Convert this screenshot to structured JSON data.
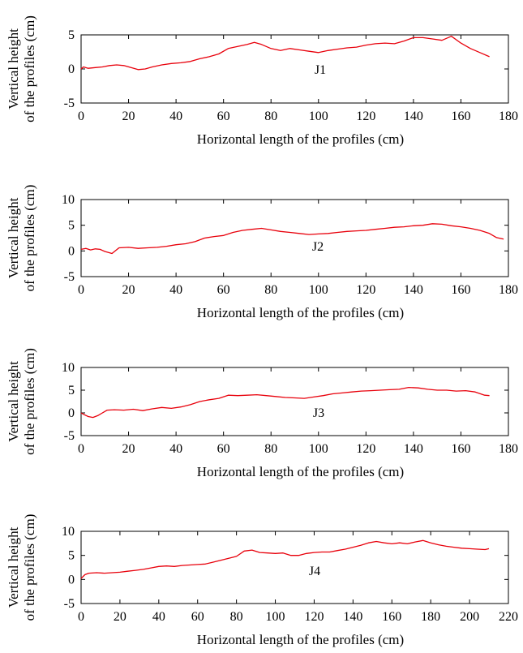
{
  "chart_data": [
    {
      "type": "line",
      "xlabel": "Horizontal length of the profiles (cm)",
      "ylabel": [
        "Vertical height",
        "of the profiles (cm)"
      ],
      "xlim": [
        0,
        180
      ],
      "ylim": [
        -5,
        5
      ],
      "xticks": [
        0,
        20,
        40,
        60,
        80,
        100,
        120,
        140,
        160,
        180
      ],
      "yticks": [
        -5,
        0,
        5
      ],
      "series_color": "#e8000b",
      "series": [
        {
          "name": "J1",
          "x": [
            0,
            1,
            3,
            6,
            9,
            12,
            15,
            18,
            21,
            24,
            27,
            30,
            34,
            38,
            42,
            46,
            50,
            54,
            58,
            62,
            66,
            70,
            73,
            76,
            80,
            84,
            88,
            92,
            96,
            100,
            104,
            108,
            112,
            116,
            120,
            124,
            128,
            132,
            136,
            140,
            144,
            148,
            152,
            156,
            160,
            164,
            168,
            172
          ],
          "values": [
            0,
            0.3,
            0.1,
            0.2,
            0.3,
            0.5,
            0.6,
            0.5,
            0.2,
            -0.1,
            0.0,
            0.3,
            0.6,
            0.8,
            0.9,
            1.1,
            1.5,
            1.8,
            2.2,
            3.0,
            3.3,
            3.6,
            3.9,
            3.6,
            3.0,
            2.7,
            3.0,
            2.8,
            2.6,
            2.4,
            2.7,
            2.9,
            3.1,
            3.2,
            3.5,
            3.7,
            3.8,
            3.7,
            4.1,
            4.6,
            4.6,
            4.4,
            4.2,
            4.8,
            3.8,
            3.0,
            2.4,
            1.8
          ]
        }
      ]
    },
    {
      "type": "line",
      "xlabel": "Horizontal length of the profiles (cm)",
      "ylabel": [
        "Vertical height",
        "of the profiles (cm)"
      ],
      "xlim": [
        0,
        180
      ],
      "ylim": [
        -5,
        10
      ],
      "xticks": [
        0,
        20,
        40,
        60,
        80,
        100,
        120,
        140,
        160,
        180
      ],
      "yticks": [
        -5,
        0,
        5,
        10
      ],
      "series_color": "#e8000b",
      "series": [
        {
          "name": "J2",
          "x": [
            0,
            2,
            4,
            6,
            8,
            10,
            13,
            16,
            20,
            24,
            28,
            32,
            36,
            40,
            44,
            48,
            52,
            56,
            60,
            64,
            68,
            72,
            76,
            80,
            84,
            88,
            92,
            96,
            100,
            104,
            108,
            112,
            116,
            120,
            124,
            128,
            132,
            136,
            140,
            144,
            148,
            152,
            156,
            160,
            164,
            168,
            172,
            175,
            178
          ],
          "values": [
            0.3,
            0.5,
            0.2,
            0.4,
            0.3,
            -0.1,
            -0.5,
            0.6,
            0.7,
            0.5,
            0.6,
            0.7,
            0.9,
            1.2,
            1.4,
            1.8,
            2.5,
            2.8,
            3.0,
            3.6,
            4.0,
            4.2,
            4.4,
            4.1,
            3.8,
            3.6,
            3.4,
            3.2,
            3.3,
            3.4,
            3.6,
            3.8,
            3.9,
            4.0,
            4.2,
            4.4,
            4.6,
            4.7,
            4.9,
            5.0,
            5.3,
            5.2,
            4.9,
            4.7,
            4.4,
            4.0,
            3.4,
            2.6,
            2.3
          ]
        }
      ]
    },
    {
      "type": "line",
      "xlabel": "Horizontal length of the profiles (cm)",
      "ylabel": [
        "Vertical height",
        "of the profiles (cm)"
      ],
      "xlim": [
        0,
        180
      ],
      "ylim": [
        -5,
        10
      ],
      "xticks": [
        0,
        20,
        40,
        60,
        80,
        100,
        120,
        140,
        160,
        180
      ],
      "yticks": [
        -5,
        0,
        5,
        10
      ],
      "series_color": "#e8000b",
      "series": [
        {
          "name": "J3",
          "x": [
            0,
            1,
            3,
            5,
            7,
            9,
            11,
            14,
            18,
            22,
            26,
            30,
            34,
            38,
            42,
            46,
            50,
            54,
            58,
            62,
            66,
            70,
            74,
            78,
            82,
            86,
            90,
            94,
            98,
            102,
            106,
            110,
            114,
            118,
            122,
            126,
            130,
            134,
            138,
            142,
            146,
            150,
            154,
            158,
            162,
            166,
            170,
            172
          ],
          "values": [
            0,
            -0.3,
            -0.8,
            -1.0,
            -0.6,
            0.0,
            0.6,
            0.7,
            0.6,
            0.8,
            0.5,
            0.9,
            1.2,
            1.0,
            1.3,
            1.8,
            2.5,
            2.9,
            3.2,
            3.9,
            3.8,
            3.9,
            4.0,
            3.8,
            3.6,
            3.4,
            3.3,
            3.2,
            3.5,
            3.8,
            4.2,
            4.4,
            4.6,
            4.8,
            4.9,
            5.0,
            5.1,
            5.2,
            5.6,
            5.5,
            5.2,
            5.0,
            5.0,
            4.8,
            4.9,
            4.6,
            3.9,
            3.8
          ]
        }
      ]
    },
    {
      "type": "line",
      "xlabel": "Horizontal length of the profiles (cm)",
      "ylabel": [
        "Vertical height",
        "of the profiles (cm)"
      ],
      "xlim": [
        0,
        220
      ],
      "ylim": [
        -5,
        10
      ],
      "xticks": [
        0,
        20,
        40,
        60,
        80,
        100,
        120,
        140,
        160,
        180,
        200,
        220
      ],
      "yticks": [
        -5,
        0,
        5,
        10
      ],
      "series_color": "#e8000b",
      "series": [
        {
          "name": "J4",
          "x": [
            0,
            2,
            4,
            8,
            12,
            16,
            20,
            24,
            28,
            32,
            36,
            40,
            44,
            48,
            52,
            56,
            60,
            64,
            68,
            72,
            76,
            80,
            84,
            88,
            92,
            96,
            100,
            104,
            108,
            112,
            116,
            120,
            124,
            128,
            132,
            136,
            140,
            144,
            148,
            152,
            156,
            160,
            164,
            168,
            172,
            176,
            180,
            184,
            188,
            192,
            196,
            200,
            204,
            208,
            210
          ],
          "values": [
            0.2,
            1.0,
            1.3,
            1.4,
            1.3,
            1.4,
            1.5,
            1.7,
            1.9,
            2.1,
            2.4,
            2.7,
            2.8,
            2.7,
            2.9,
            3.0,
            3.1,
            3.2,
            3.6,
            4.0,
            4.4,
            4.8,
            5.9,
            6.1,
            5.6,
            5.5,
            5.4,
            5.5,
            5.0,
            5.0,
            5.4,
            5.6,
            5.7,
            5.7,
            6.0,
            6.3,
            6.7,
            7.1,
            7.6,
            7.9,
            7.6,
            7.4,
            7.6,
            7.4,
            7.8,
            8.1,
            7.6,
            7.2,
            6.9,
            6.7,
            6.5,
            6.4,
            6.3,
            6.2,
            6.4
          ]
        }
      ]
    }
  ]
}
